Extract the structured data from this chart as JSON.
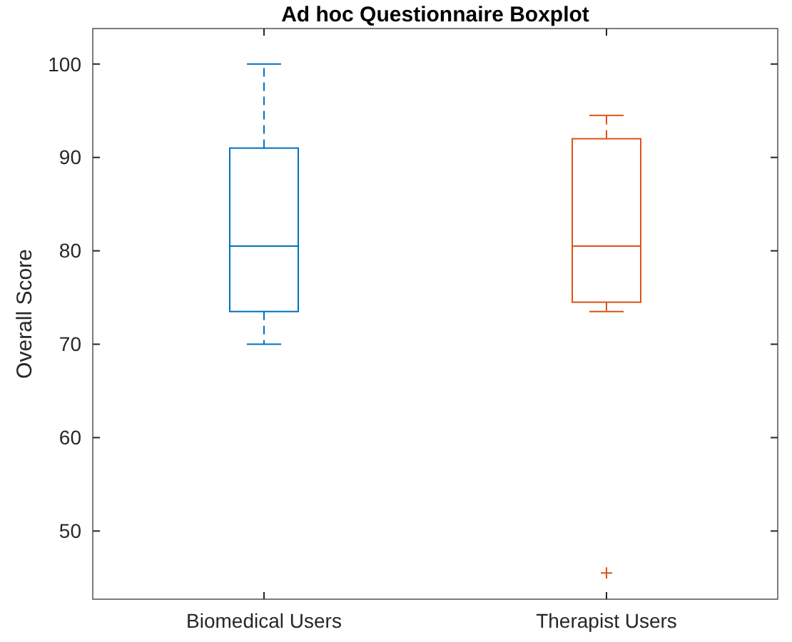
{
  "chart_data": {
    "type": "box",
    "title": "Ad hoc Questionnaire Boxplot",
    "ylabel": "Overall Score",
    "categories": [
      "Biomedical Users",
      "Therapist Users"
    ],
    "boxes": [
      {
        "low": 70,
        "q1": 73.5,
        "median": 80.5,
        "q3": 91,
        "high": 100
      },
      {
        "low": 73.5,
        "q1": 74.5,
        "median": 80.5,
        "q3": 92,
        "high": 94.5,
        "outliers": [
          45.5
        ]
      }
    ],
    "colors": [
      "#0072bd",
      "#d95319"
    ],
    "ylim": [
      42.7,
      103.8
    ],
    "yticks": [
      50,
      60,
      70,
      80,
      90,
      100
    ],
    "grid": false,
    "marker": "cross",
    "line_style": "dashed"
  }
}
